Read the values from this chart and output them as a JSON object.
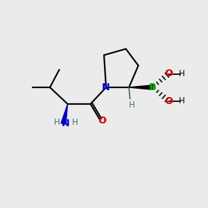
{
  "bg_color": "#ebebeb",
  "bond_color": "#000000",
  "N_color": "#0000cc",
  "O_color": "#dd0000",
  "B_color": "#00aa00",
  "H_color": "#407070",
  "fig_width": 3.0,
  "fig_height": 3.0,
  "dpi": 100,
  "xlim": [
    0,
    10
  ],
  "ylim": [
    0,
    10
  ]
}
